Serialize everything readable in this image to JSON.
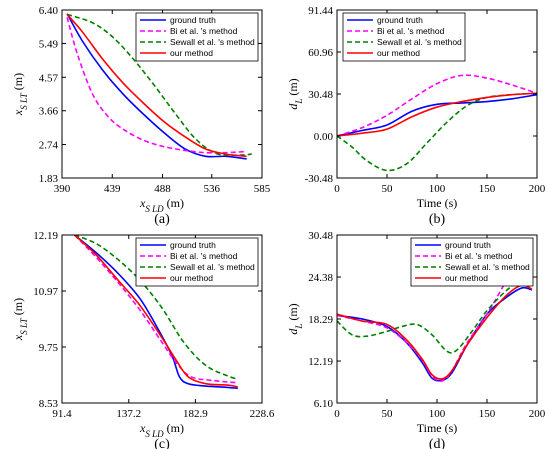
{
  "chart_data": [
    {
      "type": "line",
      "panel_label": "(a)",
      "xlabel": "x_{S_LD} (m)",
      "ylabel": "x_{S_LT} (m)",
      "xlim": [
        390,
        585
      ],
      "ylim": [
        1.83,
        6.4
      ],
      "xticks": [
        "390",
        "439",
        "488",
        "536",
        "585"
      ],
      "yticks": [
        "1.83",
        "2.74",
        "3.66",
        "4.57",
        "5.49",
        "6.40"
      ],
      "legend_position": "top-right",
      "series": [
        {
          "name": "ground truth",
          "color": "#0000ff",
          "dash": "solid",
          "x": [
            395,
            410,
            430,
            450,
            470,
            490,
            510,
            530,
            550,
            570
          ],
          "y": [
            6.3,
            5.55,
            4.75,
            4.1,
            3.55,
            3.05,
            2.62,
            2.42,
            2.42,
            2.35
          ]
        },
        {
          "name": "Bi et al. 's method",
          "color": "#ff00ff",
          "dash": "dashed",
          "x": [
            395,
            405,
            420,
            435,
            450,
            470,
            490,
            510,
            530,
            550,
            570
          ],
          "y": [
            6.2,
            5.2,
            4.1,
            3.5,
            3.15,
            2.85,
            2.68,
            2.58,
            2.52,
            2.52,
            2.55
          ]
        },
        {
          "name": "Sewall et al. 's method",
          "color": "#008000",
          "dash": "dashed",
          "x": [
            395,
            420,
            440,
            460,
            480,
            500,
            520,
            540,
            560,
            575
          ],
          "y": [
            6.28,
            6.05,
            5.65,
            5.05,
            4.35,
            3.6,
            2.9,
            2.5,
            2.45,
            2.48
          ]
        },
        {
          "name": "our method",
          "color": "#ff0000",
          "dash": "solid",
          "x": [
            395,
            410,
            430,
            450,
            470,
            490,
            510,
            530,
            550,
            570
          ],
          "y": [
            6.28,
            5.8,
            5.05,
            4.4,
            3.85,
            3.35,
            2.95,
            2.62,
            2.48,
            2.42
          ]
        }
      ]
    },
    {
      "type": "line",
      "panel_label": "(b)",
      "xlabel": "Time (s)",
      "ylabel": "d_L (m)",
      "xlim": [
        0,
        200
      ],
      "ylim": [
        -30.48,
        91.44
      ],
      "xticks": [
        "0",
        "50",
        "100",
        "150",
        "200"
      ],
      "yticks": [
        "-30.48",
        "0.00",
        "30.48",
        "60.96",
        "91.44"
      ],
      "legend_position": "top-left",
      "series": [
        {
          "name": "ground truth",
          "color": "#0000ff",
          "dash": "solid",
          "x": [
            0,
            25,
            50,
            75,
            100,
            125,
            150,
            175,
            200
          ],
          "y": [
            0,
            4,
            8,
            18,
            23,
            24,
            25,
            27,
            30
          ]
        },
        {
          "name": "Bi et al. 's method",
          "color": "#ff00ff",
          "dash": "dashed",
          "x": [
            0,
            25,
            50,
            75,
            100,
            125,
            150,
            175,
            200
          ],
          "y": [
            0,
            6,
            15,
            27,
            38,
            44,
            42,
            37,
            31
          ]
        },
        {
          "name": "Sewall et al. 's method",
          "color": "#008000",
          "dash": "dashed",
          "x": [
            0,
            15,
            30,
            50,
            70,
            90,
            110,
            130,
            150,
            175,
            200
          ],
          "y": [
            0,
            -8,
            -18,
            -25,
            -20,
            -5,
            10,
            22,
            28,
            30,
            31
          ]
        },
        {
          "name": "our method",
          "color": "#ff0000",
          "dash": "solid",
          "x": [
            0,
            25,
            50,
            75,
            100,
            125,
            150,
            175,
            200
          ],
          "y": [
            0,
            2,
            5,
            14,
            21,
            25,
            28,
            30,
            31
          ]
        }
      ]
    },
    {
      "type": "line",
      "panel_label": "(c)",
      "xlabel": "x_{S_LD} (m)",
      "ylabel": "x_{S_LT} (m)",
      "xlim": [
        91.4,
        228.6
      ],
      "ylim": [
        8.53,
        12.19
      ],
      "xticks": [
        "91.4",
        "137.2",
        "182.9",
        "228.6"
      ],
      "yticks": [
        "8.53",
        "9.75",
        "10.97",
        "12.19"
      ],
      "legend_position": "top-right",
      "series": [
        {
          "name": "ground truth",
          "color": "#0000ff",
          "dash": "solid",
          "x": [
            100,
            115,
            130,
            145,
            158,
            167,
            172,
            178,
            190,
            205,
            212
          ],
          "y": [
            12.19,
            11.8,
            11.35,
            10.8,
            10.1,
            9.55,
            9.1,
            8.95,
            8.9,
            8.87,
            8.85
          ]
        },
        {
          "name": "Bi et al. 's method",
          "color": "#ff00ff",
          "dash": "dashed",
          "x": [
            100,
            115,
            130,
            145,
            160,
            170,
            180,
            195,
            212
          ],
          "y": [
            12.19,
            11.7,
            11.15,
            10.55,
            9.85,
            9.4,
            9.1,
            9.02,
            8.97
          ]
        },
        {
          "name": "Sewall et al. 's method",
          "color": "#008000",
          "dash": "dashed",
          "x": [
            100,
            115,
            130,
            145,
            160,
            175,
            190,
            205,
            212
          ],
          "y": [
            12.19,
            12.0,
            11.65,
            11.2,
            10.6,
            9.85,
            9.35,
            9.12,
            9.05
          ]
        },
        {
          "name": "our method",
          "color": "#ff0000",
          "dash": "solid",
          "x": [
            100,
            115,
            130,
            145,
            160,
            170,
            178,
            190,
            205,
            212
          ],
          "y": [
            12.19,
            11.75,
            11.2,
            10.65,
            9.95,
            9.45,
            9.1,
            8.95,
            8.92,
            8.88
          ]
        }
      ]
    },
    {
      "type": "line",
      "panel_label": "(d)",
      "xlabel": "Time (s)",
      "ylabel": "d_L (m)",
      "xlim": [
        0,
        200
      ],
      "ylim": [
        6.1,
        30.48
      ],
      "xticks": [
        "0",
        "50",
        "100",
        "150",
        "200"
      ],
      "yticks": [
        "6.10",
        "12.19",
        "18.29",
        "24.38",
        "30.48"
      ],
      "legend_position": "top-right",
      "series": [
        {
          "name": "ground truth",
          "color": "#0000ff",
          "dash": "solid",
          "x": [
            0,
            25,
            50,
            70,
            85,
            95,
            105,
            115,
            130,
            150,
            170,
            185,
            195
          ],
          "y": [
            18.8,
            18.3,
            17.2,
            14.8,
            12.0,
            9.7,
            9.4,
            10.5,
            14.5,
            19.0,
            21.5,
            22.8,
            22.5
          ]
        },
        {
          "name": "Bi et al. 's method",
          "color": "#ff00ff",
          "dash": "dashed",
          "x": [
            0,
            25,
            50,
            70,
            85,
            95,
            105,
            115,
            130,
            150,
            170,
            185,
            195
          ],
          "y": [
            18.8,
            18.0,
            17.0,
            14.8,
            12.4,
            10.0,
            9.3,
            10.8,
            14.8,
            19.0,
            24.0,
            27.5,
            28.0
          ]
        },
        {
          "name": "Sewall et al. 's method",
          "color": "#008000",
          "dash": "dashed",
          "x": [
            0,
            15,
            30,
            50,
            65,
            80,
            95,
            110,
            120,
            135,
            150,
            170,
            185,
            195
          ],
          "y": [
            18.0,
            16.0,
            15.8,
            16.5,
            17.2,
            17.5,
            16.0,
            13.6,
            13.8,
            16.5,
            19.5,
            22.5,
            23.8,
            23.0
          ]
        },
        {
          "name": "our method",
          "color": "#ff0000",
          "dash": "solid",
          "x": [
            0,
            25,
            50,
            70,
            85,
            95,
            105,
            115,
            130,
            150,
            170,
            185,
            195
          ],
          "y": [
            19.0,
            18.0,
            17.5,
            15.2,
            12.5,
            10.2,
            9.6,
            10.8,
            14.5,
            18.5,
            21.8,
            23.2,
            22.6
          ]
        }
      ]
    }
  ]
}
